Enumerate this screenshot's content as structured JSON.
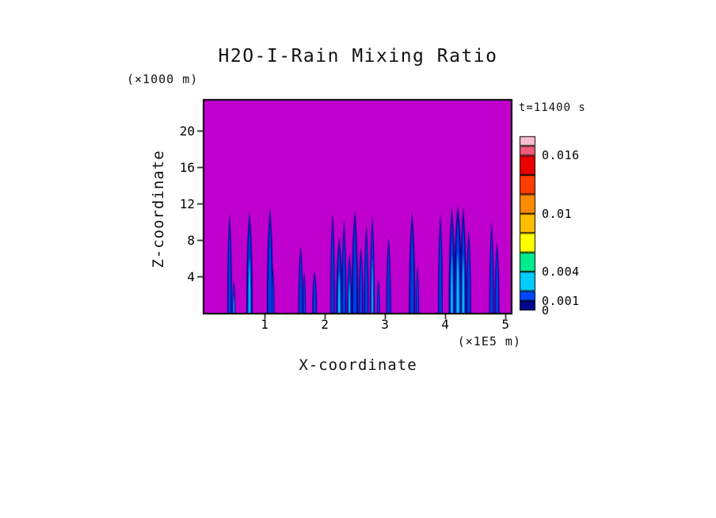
{
  "header": {
    "title": "H2O-I-Rain Mixing Ratio",
    "time_label": "t=11400 s"
  },
  "axes": {
    "x_label": "X-coordinate",
    "x_unit_label": "(×1E5 m)",
    "y_unit_label": "(×1000 m)",
    "z_label": "Z-coordinate"
  },
  "chart_data": {
    "type": "heatmap",
    "title": "H2O-I-Rain Mixing Ratio",
    "subtitle": "t=11400 s",
    "xlabel": "X-coordinate (×1E5 m)",
    "ylabel": "Z-coordinate (×1000 m)",
    "xlim": [
      0,
      5.09
    ],
    "ylim": [
      0,
      23.3
    ],
    "x_ticks": [
      "1",
      "2",
      "3",
      "4",
      "5"
    ],
    "x_tick_values": [
      1,
      2,
      3,
      4,
      5
    ],
    "y_ticks": [
      "4",
      "8",
      "12",
      "16",
      "20"
    ],
    "y_tick_values": [
      4,
      8,
      12,
      16,
      20
    ],
    "grid": false,
    "background_field_color": "#C000CC",
    "frame_color": "#000000",
    "shaft_colors": {
      "body": "#000890",
      "inner": "#0040E0",
      "core": "#00C8F0"
    },
    "rain_shafts": [
      {
        "x": 0.42,
        "top_z": 11.0,
        "w": 3,
        "core": false
      },
      {
        "x": 0.49,
        "top_z": 3.5,
        "w": 2,
        "core": true
      },
      {
        "x": 0.75,
        "top_z": 11.2,
        "w": 4,
        "core": true
      },
      {
        "x": 1.09,
        "top_z": 11.6,
        "w": 4,
        "core": false
      },
      {
        "x": 1.14,
        "top_z": 5.0,
        "w": 2,
        "core": false
      },
      {
        "x": 1.6,
        "top_z": 7.4,
        "w": 3,
        "core": false
      },
      {
        "x": 1.66,
        "top_z": 4.5,
        "w": 2,
        "core": false
      },
      {
        "x": 1.83,
        "top_z": 4.6,
        "w": 3,
        "core": false
      },
      {
        "x": 2.13,
        "top_z": 11.0,
        "w": 3,
        "core": false
      },
      {
        "x": 2.24,
        "top_z": 8.3,
        "w": 4,
        "core": true
      },
      {
        "x": 2.32,
        "top_z": 10.2,
        "w": 3,
        "core": false
      },
      {
        "x": 2.41,
        "top_z": 6.5,
        "w": 3,
        "core": true
      },
      {
        "x": 2.5,
        "top_z": 11.4,
        "w": 4,
        "core": false
      },
      {
        "x": 2.6,
        "top_z": 7.2,
        "w": 3,
        "core": false
      },
      {
        "x": 2.69,
        "top_z": 9.6,
        "w": 3,
        "core": false
      },
      {
        "x": 2.79,
        "top_z": 10.7,
        "w": 3,
        "core": true
      },
      {
        "x": 2.89,
        "top_z": 3.7,
        "w": 2,
        "core": false
      },
      {
        "x": 3.06,
        "top_z": 8.3,
        "w": 3,
        "core": false
      },
      {
        "x": 3.45,
        "top_z": 11.0,
        "w": 4,
        "core": false
      },
      {
        "x": 3.54,
        "top_z": 5.2,
        "w": 2,
        "core": false
      },
      {
        "x": 3.92,
        "top_z": 10.9,
        "w": 3,
        "core": false
      },
      {
        "x": 4.11,
        "top_z": 11.6,
        "w": 4,
        "core": true
      },
      {
        "x": 4.21,
        "top_z": 11.9,
        "w": 5,
        "core": true
      },
      {
        "x": 4.3,
        "top_z": 11.6,
        "w": 4,
        "core": true
      },
      {
        "x": 4.39,
        "top_z": 9.1,
        "w": 3,
        "core": false
      },
      {
        "x": 4.77,
        "top_z": 10.0,
        "w": 3,
        "core": false
      },
      {
        "x": 4.86,
        "top_z": 7.8,
        "w": 3,
        "core": false
      }
    ],
    "colorbar": {
      "position": "right",
      "range": [
        0,
        0.018
      ],
      "levels": [
        0,
        0.001,
        0.002,
        0.004,
        0.006,
        0.008,
        0.01,
        0.012,
        0.014,
        0.016,
        0.017,
        0.018
      ],
      "colors": [
        "#000890",
        "#0048FF",
        "#00CCFF",
        "#00EB8C",
        "#FFFF00",
        "#FFBE00",
        "#FF8C00",
        "#FF3C00",
        "#EB0000",
        "#F05A78",
        "#F8BED2"
      ],
      "labels": [
        {
          "value": 0.016,
          "text": "0.016"
        },
        {
          "value": 0.01,
          "text": "0.01"
        },
        {
          "value": 0.004,
          "text": "0.004"
        },
        {
          "value": 0.001,
          "text": "0.001"
        },
        {
          "value": 0,
          "text": "0"
        }
      ]
    }
  }
}
